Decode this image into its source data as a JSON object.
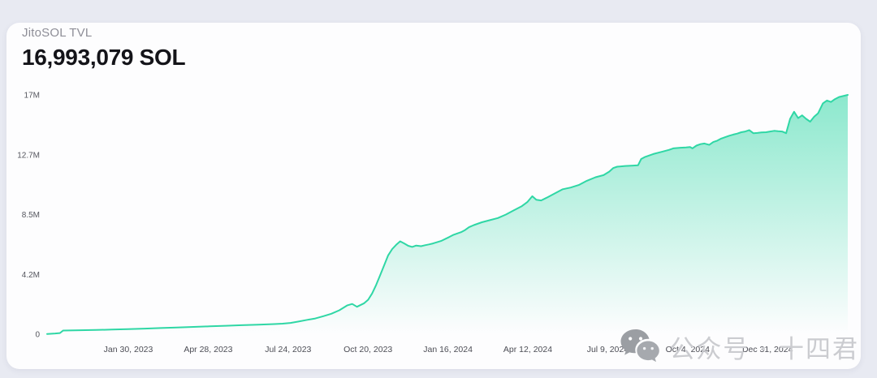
{
  "page": {
    "background": "#e8eaf2",
    "card_background": "#fdfdfe"
  },
  "header": {
    "label": "JitoSOL TVL",
    "value": "16,993,079 SOL"
  },
  "watermark": {
    "text": "公众号 · 十四君",
    "icon": "wechat-icon",
    "color": "#cbccd0"
  },
  "chart_data": {
    "type": "area",
    "title": "JitoSOL TVL",
    "unit": "SOL",
    "current_value": "16,993,079 SOL",
    "line_color": "#2fd7a5",
    "fill_top": "rgba(47,215,165,0.55)",
    "fill_bottom": "rgba(47,215,165,0)",
    "grid": false,
    "legend": "none",
    "ylim": [
      0,
      17
    ],
    "y_unit": "millions of SOL",
    "y_ticks": [
      {
        "value": 0,
        "label": "0"
      },
      {
        "value": 4.25,
        "label": "4.2M"
      },
      {
        "value": 8.5,
        "label": "8.5M"
      },
      {
        "value": 12.75,
        "label": "12.7M"
      },
      {
        "value": 17,
        "label": "17M"
      }
    ],
    "x_tick_labels": [
      "Jan 30, 2023",
      "Apr 28, 2023",
      "Jul 24, 2023",
      "Oct 20, 2023",
      "Jan 16, 2024",
      "Apr 12, 2024",
      "Jul 9, 2024",
      "Oct 4, 2024",
      "Dec 31, 2024"
    ],
    "points_desc": "pairs of [x fraction across time axis (Nov 2022 to chart end), TVL in millions of SOL]",
    "points": [
      [
        0.0,
        0.02
      ],
      [
        0.01,
        0.05
      ],
      [
        0.016,
        0.08
      ],
      [
        0.02,
        0.26
      ],
      [
        0.041,
        0.28
      ],
      [
        0.061,
        0.3
      ],
      [
        0.081,
        0.33
      ],
      [
        0.101,
        0.36
      ],
      [
        0.122,
        0.4
      ],
      [
        0.142,
        0.44
      ],
      [
        0.162,
        0.48
      ],
      [
        0.183,
        0.52
      ],
      [
        0.203,
        0.56
      ],
      [
        0.223,
        0.6
      ],
      [
        0.243,
        0.64
      ],
      [
        0.264,
        0.68
      ],
      [
        0.284,
        0.72
      ],
      [
        0.294,
        0.75
      ],
      [
        0.304,
        0.8
      ],
      [
        0.314,
        0.9
      ],
      [
        0.325,
        1.02
      ],
      [
        0.335,
        1.12
      ],
      [
        0.345,
        1.28
      ],
      [
        0.355,
        1.45
      ],
      [
        0.365,
        1.7
      ],
      [
        0.375,
        2.05
      ],
      [
        0.381,
        2.15
      ],
      [
        0.387,
        1.95
      ],
      [
        0.396,
        2.2
      ],
      [
        0.401,
        2.45
      ],
      [
        0.406,
        2.9
      ],
      [
        0.411,
        3.5
      ],
      [
        0.416,
        4.2
      ],
      [
        0.421,
        4.9
      ],
      [
        0.426,
        5.6
      ],
      [
        0.431,
        6.05
      ],
      [
        0.436,
        6.35
      ],
      [
        0.441,
        6.6
      ],
      [
        0.446,
        6.45
      ],
      [
        0.451,
        6.28
      ],
      [
        0.456,
        6.2
      ],
      [
        0.461,
        6.3
      ],
      [
        0.467,
        6.25
      ],
      [
        0.472,
        6.32
      ],
      [
        0.477,
        6.38
      ],
      [
        0.482,
        6.45
      ],
      [
        0.492,
        6.62
      ],
      [
        0.502,
        6.9
      ],
      [
        0.507,
        7.05
      ],
      [
        0.512,
        7.15
      ],
      [
        0.517,
        7.25
      ],
      [
        0.522,
        7.4
      ],
      [
        0.527,
        7.6
      ],
      [
        0.533,
        7.75
      ],
      [
        0.543,
        7.95
      ],
      [
        0.553,
        8.1
      ],
      [
        0.563,
        8.25
      ],
      [
        0.573,
        8.5
      ],
      [
        0.583,
        8.8
      ],
      [
        0.593,
        9.1
      ],
      [
        0.6,
        9.4
      ],
      [
        0.606,
        9.8
      ],
      [
        0.611,
        9.55
      ],
      [
        0.617,
        9.5
      ],
      [
        0.624,
        9.7
      ],
      [
        0.634,
        10.0
      ],
      [
        0.644,
        10.3
      ],
      [
        0.654,
        10.42
      ],
      [
        0.664,
        10.6
      ],
      [
        0.674,
        10.9
      ],
      [
        0.685,
        11.15
      ],
      [
        0.695,
        11.3
      ],
      [
        0.702,
        11.55
      ],
      [
        0.707,
        11.8
      ],
      [
        0.712,
        11.9
      ],
      [
        0.722,
        11.95
      ],
      [
        0.732,
        11.98
      ],
      [
        0.738,
        12.0
      ],
      [
        0.742,
        12.45
      ],
      [
        0.747,
        12.6
      ],
      [
        0.757,
        12.8
      ],
      [
        0.767,
        12.95
      ],
      [
        0.777,
        13.1
      ],
      [
        0.782,
        13.2
      ],
      [
        0.791,
        13.25
      ],
      [
        0.798,
        13.27
      ],
      [
        0.803,
        13.3
      ],
      [
        0.806,
        13.2
      ],
      [
        0.811,
        13.4
      ],
      [
        0.816,
        13.5
      ],
      [
        0.821,
        13.55
      ],
      [
        0.827,
        13.45
      ],
      [
        0.832,
        13.65
      ],
      [
        0.837,
        13.75
      ],
      [
        0.842,
        13.9
      ],
      [
        0.847,
        14.0
      ],
      [
        0.852,
        14.1
      ],
      [
        0.857,
        14.18
      ],
      [
        0.862,
        14.25
      ],
      [
        0.867,
        14.35
      ],
      [
        0.872,
        14.4
      ],
      [
        0.877,
        14.5
      ],
      [
        0.882,
        14.28
      ],
      [
        0.887,
        14.3
      ],
      [
        0.892,
        14.33
      ],
      [
        0.898,
        14.35
      ],
      [
        0.903,
        14.4
      ],
      [
        0.908,
        14.45
      ],
      [
        0.913,
        14.42
      ],
      [
        0.918,
        14.4
      ],
      [
        0.923,
        14.28
      ],
      [
        0.928,
        15.3
      ],
      [
        0.933,
        15.8
      ],
      [
        0.938,
        15.35
      ],
      [
        0.943,
        15.55
      ],
      [
        0.948,
        15.3
      ],
      [
        0.953,
        15.1
      ],
      [
        0.958,
        15.45
      ],
      [
        0.963,
        15.7
      ],
      [
        0.969,
        16.4
      ],
      [
        0.974,
        16.6
      ],
      [
        0.979,
        16.5
      ],
      [
        0.984,
        16.7
      ],
      [
        0.989,
        16.85
      ],
      [
        1.0,
        17.0
      ]
    ]
  }
}
